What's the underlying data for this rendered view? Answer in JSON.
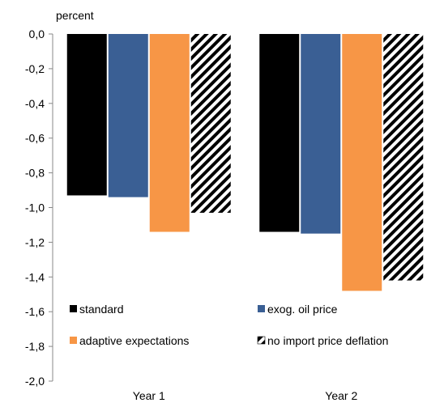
{
  "chart_data": {
    "type": "bar",
    "title": "",
    "unit_label": "percent",
    "xlabel": "",
    "ylabel": "percent",
    "categories": [
      "Year 1",
      "Year 2"
    ],
    "ylim": [
      -2.0,
      0.0
    ],
    "yticks": [
      0.0,
      -0.2,
      -0.4,
      -0.6,
      -0.8,
      -1.0,
      -1.2,
      -1.4,
      -1.6,
      -1.8,
      -2.0
    ],
    "ytick_labels": [
      "0,0",
      "-0,2",
      "-0,4",
      "-0,6",
      "-0,8",
      "-1,0",
      "-1,2",
      "-1,4",
      "-1,6",
      "-1,8",
      "-2,0"
    ],
    "grid": false,
    "legend_position": "bottom-inside, two columns",
    "series": [
      {
        "name": "standard",
        "values": [
          -0.93,
          -1.14
        ],
        "color": "#000000",
        "pattern": "solid"
      },
      {
        "name": "exog. oil price",
        "values": [
          -0.94,
          -1.15
        ],
        "color": "#3a5f94",
        "pattern": "solid"
      },
      {
        "name": "adaptive expectations",
        "values": [
          -1.14,
          -1.48
        ],
        "color": "#f79646",
        "pattern": "solid"
      },
      {
        "name": "no import price deflation",
        "values": [
          -1.03,
          -1.42
        ],
        "color": "#000000",
        "pattern": "diagonal-stripes"
      }
    ]
  }
}
